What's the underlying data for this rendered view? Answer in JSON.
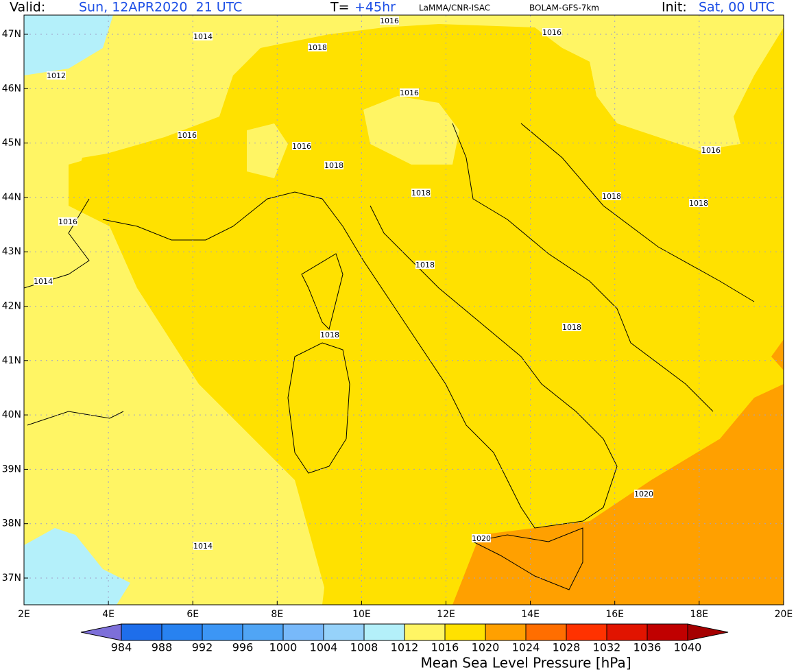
{
  "header": {
    "valid_label": "Valid:",
    "valid_time": "Sun, 12APR2020  21 UTC",
    "t_label": "T=",
    "t_value": "+45hr",
    "source": "LaMMA/CNR-ISAC",
    "model": "BOLAM-GFS-7km",
    "init_label": "Init:",
    "init_time": "Sat, 00 UTC"
  },
  "map": {
    "lat_labels": [
      "47N",
      "46N",
      "45N",
      "44N",
      "43N",
      "42N",
      "41N",
      "40N",
      "39N",
      "38N",
      "37N"
    ],
    "lon_labels": [
      "2E",
      "4E",
      "6E",
      "8E",
      "10E",
      "12E",
      "14E",
      "16E",
      "18E",
      "20E"
    ],
    "contour_labels": [
      "1016",
      "1016",
      "1014",
      "1018",
      "1012",
      "1016",
      "1016",
      "1016",
      "1018",
      "1016",
      "1018",
      "1018",
      "1018",
      "1016",
      "1018",
      "1014",
      "1018",
      "1018",
      "1020",
      "1020",
      "1014"
    ],
    "fills": {
      "low": "#b4f0fa",
      "mid": "#fff564",
      "base": "#ffe100",
      "high": "#ffa000"
    }
  },
  "colorbar": {
    "title": "Mean Sea Level Pressure [hPa]",
    "ticks": [
      984,
      988,
      992,
      996,
      1000,
      1004,
      1008,
      1012,
      1016,
      1020,
      1024,
      1028,
      1032,
      1036,
      1040
    ],
    "colors": [
      "#7d6fd9",
      "#1e6eeb",
      "#2882f0",
      "#3c96f5",
      "#50a5f5",
      "#78b9fa",
      "#96d2fa",
      "#b4f0fa",
      "#fff564",
      "#ffe100",
      "#ffa000",
      "#ff6e00",
      "#ff3200",
      "#e11400",
      "#c00000",
      "#a50000"
    ]
  }
}
